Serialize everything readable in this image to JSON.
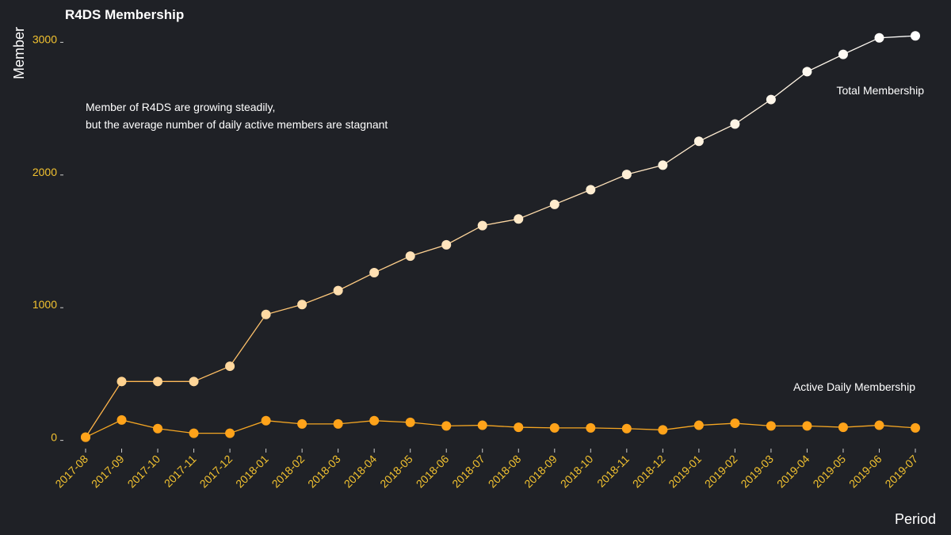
{
  "chart_data": {
    "type": "line",
    "title": "R4DS Membership",
    "xlabel": "Period",
    "ylabel": "Member",
    "categories": [
      "2017-08",
      "2017-09",
      "2017-10",
      "2017-11",
      "2017-12",
      "2018-01",
      "2018-02",
      "2018-03",
      "2018-04",
      "2018-05",
      "2018-06",
      "2018-07",
      "2018-08",
      "2018-09",
      "2018-10",
      "2018-11",
      "2018-12",
      "2019-01",
      "2019-02",
      "2019-03",
      "2019-04",
      "2019-05",
      "2019-06",
      "2019-07"
    ],
    "y_ticks": [
      0,
      1000,
      2000,
      3000
    ],
    "ylim": [
      -50,
      3080
    ],
    "grid": false,
    "legend": "none",
    "series": [
      {
        "name": "Total Membership",
        "values": [
          0,
          420,
          420,
          420,
          535,
          925,
          1000,
          1105,
          1240,
          1365,
          1450,
          1595,
          1645,
          1755,
          1865,
          1980,
          2050,
          2230,
          2360,
          2545,
          2755,
          2885,
          3010,
          3025
        ]
      },
      {
        "name": "Active Daily Membership",
        "values": [
          0,
          130,
          65,
          30,
          30,
          125,
          100,
          100,
          125,
          112,
          85,
          90,
          75,
          70,
          70,
          65,
          55,
          90,
          105,
          85,
          85,
          75,
          90,
          70
        ]
      }
    ],
    "annotations": [
      "Member of R4DS are growing steadily,",
      "but the average number of daily active members are stagnant"
    ],
    "colors": {
      "background": "#1f2126",
      "tick_text": "#f2c230",
      "total_start": "#ffd08a",
      "total_end": "#ffffff",
      "total_line_start": "#ffb347",
      "total_line_end": "#ffffff",
      "active_line": "#f5a623",
      "active_point": "#ffa31a"
    }
  }
}
